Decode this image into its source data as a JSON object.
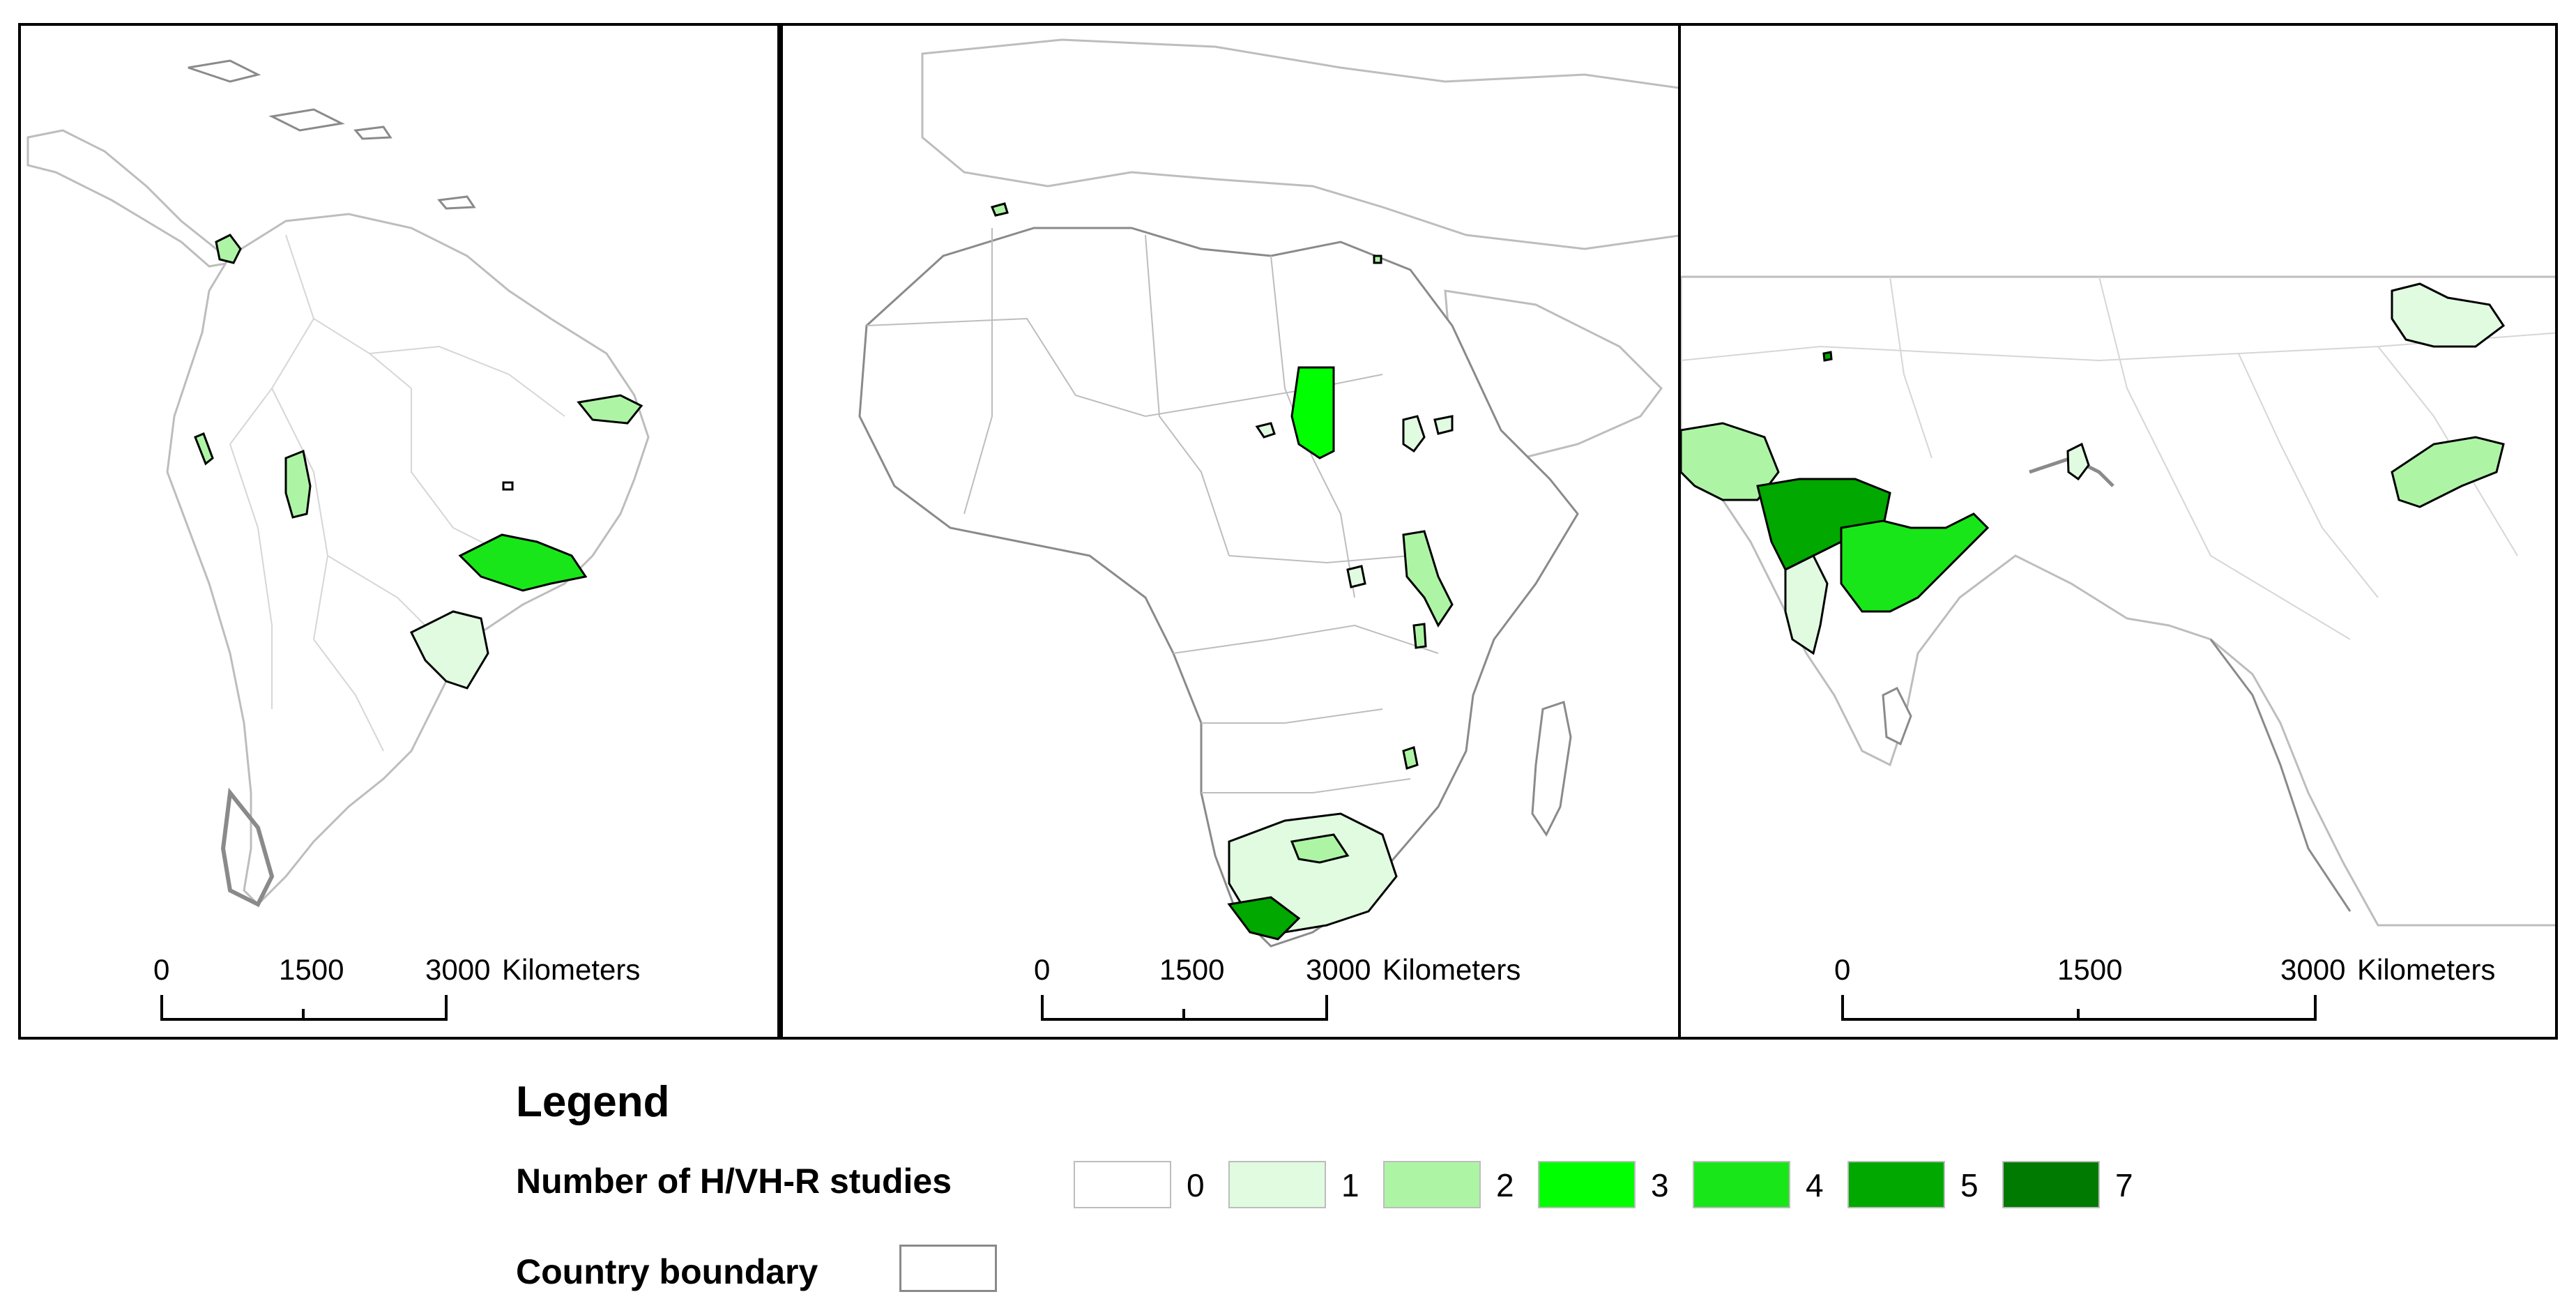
{
  "panels": [
    {
      "name": "south-america",
      "scale": {
        "labels": [
          "0",
          "1500",
          "3000"
        ],
        "unit": "Kilometers"
      }
    },
    {
      "name": "africa",
      "scale": {
        "labels": [
          "0",
          "1500",
          "3000"
        ],
        "unit": "Kilometers"
      }
    },
    {
      "name": "south-asia",
      "scale": {
        "labels": [
          "0",
          "1500",
          "3000"
        ],
        "unit": "Kilometers"
      }
    }
  ],
  "legend": {
    "title": "Legend",
    "studies_label": "Number of H/VH-R studies",
    "classes": [
      {
        "label": "0",
        "color": "#ffffff"
      },
      {
        "label": "1",
        "color": "#e1fbe1"
      },
      {
        "label": "2",
        "color": "#adf5a5"
      },
      {
        "label": "3",
        "color": "#00ff00"
      },
      {
        "label": "4",
        "color": "#19e619"
      },
      {
        "label": "5",
        "color": "#00a800"
      },
      {
        "label": "7",
        "color": "#007a00"
      }
    ],
    "boundary_label": "Country boundary"
  }
}
